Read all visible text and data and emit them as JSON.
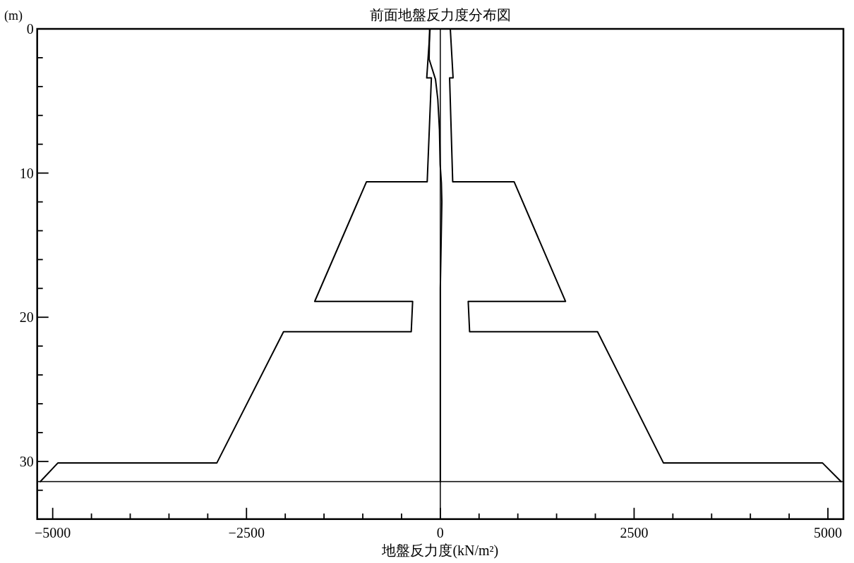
{
  "chart_data": {
    "type": "line",
    "title": "前面地盤反力度分布図",
    "xlabel": "地盤反力度(kN/m²)",
    "ylabel": "(m)",
    "xlim": [
      -5200,
      5200
    ],
    "ylim": [
      34,
      0
    ],
    "xticks": [
      -5000,
      {
        "value": -4500,
        "label": null
      },
      {
        "value": -4000,
        "label": null
      },
      {
        "value": -3500,
        "label": null
      },
      {
        "value": -3000,
        "label": null
      },
      -2500,
      {
        "value": -2000,
        "label": null
      },
      {
        "value": -1500,
        "label": null
      },
      {
        "value": -1000,
        "label": null
      },
      {
        "value": -500,
        "label": null
      },
      0,
      {
        "value": 500,
        "label": null
      },
      {
        "value": 1000,
        "label": null
      },
      {
        "value": 1500,
        "label": null
      },
      {
        "value": 2000,
        "label": null
      },
      2500,
      {
        "value": 3000,
        "label": null
      },
      {
        "value": 3500,
        "label": null
      },
      {
        "value": 4000,
        "label": null
      },
      {
        "value": 4500,
        "label": null
      },
      5000
    ],
    "yticks": [
      0,
      {
        "value": 2,
        "label": null
      },
      {
        "value": 4,
        "label": null
      },
      {
        "value": 6,
        "label": null
      },
      {
        "value": 8,
        "label": null
      },
      10,
      {
        "value": 12,
        "label": null
      },
      {
        "value": 14,
        "label": null
      },
      {
        "value": 16,
        "label": null
      },
      {
        "value": 18,
        "label": null
      },
      20,
      {
        "value": 22,
        "label": null
      },
      {
        "value": 24,
        "label": null
      },
      {
        "value": 26,
        "label": null
      },
      {
        "value": 28,
        "label": null
      },
      30,
      {
        "value": 32,
        "label": null
      }
    ],
    "series": [
      {
        "color": "#000000",
        "x": [
          -132,
          -175,
          -115,
          -169,
          -952,
          -1620,
          -357,
          -375,
          -2022,
          -2882,
          -4932,
          -5160
        ],
        "values": [
          0,
          3.4,
          3.4,
          10.6,
          10.6,
          18.9,
          18.9,
          21.0,
          21.0,
          30.1,
          30.1,
          31.4
        ]
      },
      {
        "color": "#000000",
        "x": [
          129,
          165,
          120,
          160,
          952,
          1615,
          360,
          378,
          2028,
          2878,
          4929,
          5170
        ],
        "values": [
          0,
          3.4,
          3.4,
          10.6,
          10.6,
          18.9,
          18.9,
          21.0,
          21.0,
          30.1,
          30.1,
          31.4
        ]
      },
      {
        "color": "#000000",
        "x": [
          0,
          -138,
          -144,
          -62,
          -32,
          -11,
          -2,
          14,
          20,
          10,
          0,
          0
        ],
        "values": [
          0,
          0,
          2.1,
          3.5,
          4.9,
          7.0,
          9.4,
          10.7,
          12,
          15,
          18,
          31.4
        ]
      }
    ],
    "ref_lines": [
      {
        "axis": "x",
        "value": 0,
        "color": "#000000"
      },
      {
        "axis": "y",
        "value": 31.4,
        "color": "#000000"
      }
    ]
  }
}
